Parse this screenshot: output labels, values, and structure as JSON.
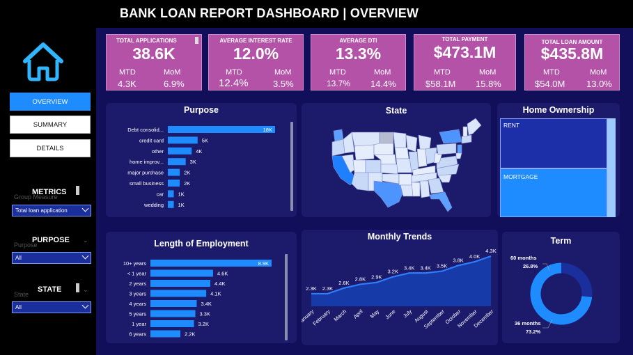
{
  "header": {
    "title": "BANK LOAN REPORT DASHBOARD | OVERVIEW"
  },
  "nav": {
    "overview": "OVERVIEW",
    "summary": "SUMMARY",
    "details": "DETAILS"
  },
  "filters": {
    "metrics": {
      "title": "METRICS",
      "ghost": "Group Measure",
      "value": "Total loan application"
    },
    "purpose": {
      "title": "PURPOSE",
      "ghost": "Purpose",
      "value": "All"
    },
    "state": {
      "title": "STATE",
      "ghost": "State",
      "value": "All"
    }
  },
  "kpis": [
    {
      "title": "TOTAL APPLICATIONS",
      "value": "38.6K",
      "mtd_label": "MTD",
      "mom_label": "MoM",
      "mtd": "4.3K",
      "mom": "6.9%"
    },
    {
      "title": "AVERAGE INTEREST RATE",
      "value": "12.0%",
      "mtd_label": "MTD",
      "mom_label": "MoM",
      "mtd": "12.4%",
      "mom": "3.5%"
    },
    {
      "title": "AVERAGE DTI",
      "value": "13.3%",
      "mtd_label": "MTD",
      "mom_label": "MoM",
      "mtd": "13.7%",
      "mom": "14.4%"
    },
    {
      "title": "TOTAL PAYMENT",
      "value": "$473.1M",
      "mtd_label": "MTD",
      "mom_label": "MoM",
      "mtd": "$58.1M",
      "mom": "15.8%"
    },
    {
      "title": "TOTAL LOAN AMOUNT",
      "value": "$435.8M",
      "mtd_label": "MTD",
      "mom_label": "MoM",
      "mtd": "$54.0M",
      "mom": "13.0%"
    }
  ],
  "panels": {
    "purpose": "Purpose",
    "state": "State",
    "home": "Home Ownership",
    "employment": "Length of Employment",
    "trends": "Monthly Trends",
    "term": "Term"
  },
  "colors": {
    "bar": "#1e8cff",
    "panel": "#1c1a6a",
    "kpi": "#b352a6",
    "main": "#120f5a"
  },
  "chart_data": [
    {
      "type": "bar",
      "categories": [
        "Debt consolid...",
        "credit card",
        "other",
        "home improv...",
        "major purchase",
        "small business",
        "car",
        "wedding"
      ],
      "values": [
        18000,
        5000,
        4000,
        3000,
        2000,
        2000,
        1000,
        1000
      ],
      "labels": [
        "18K",
        "5K",
        "4K",
        "3K",
        "2K",
        "2K",
        "1K",
        "1K"
      ]
    },
    {
      "type": "bar",
      "categories": [
        "10+ years",
        "< 1 year",
        "2 years",
        "3 years",
        "4 years",
        "5 years",
        "1 year",
        "6 years"
      ],
      "values": [
        8900,
        4600,
        4400,
        4100,
        3400,
        3300,
        3200,
        2200
      ],
      "labels": [
        "8.9K",
        "4.6K",
        "4.4K",
        "4.1K",
        "3.4K",
        "3.3K",
        "3.2K",
        "2.2K"
      ]
    },
    {
      "type": "area",
      "categories": [
        "January",
        "February",
        "March",
        "April",
        "May",
        "June",
        "July",
        "August",
        "September",
        "October",
        "November",
        "December"
      ],
      "values": [
        2300,
        2300,
        2600,
        2800,
        2900,
        3200,
        3400,
        3400,
        3500,
        3800,
        4000,
        4300
      ],
      "labels": [
        "2.3K",
        "2.3K",
        "2.6K",
        "2.8K",
        "2.9K",
        "3.2K",
        "3.4K",
        "3.4K",
        "3.5K",
        "3.8K",
        "4.0K",
        "4.3K"
      ]
    },
    {
      "type": "pie",
      "categories": [
        "60 months",
        "36 months"
      ],
      "values": [
        26.8,
        73.2
      ],
      "labels": [
        "26.8%",
        "73.2%"
      ]
    },
    {
      "type": "heatmap",
      "categories": [
        "RENT",
        "MORTGAGE"
      ],
      "values": [
        0.48,
        0.52
      ]
    }
  ]
}
